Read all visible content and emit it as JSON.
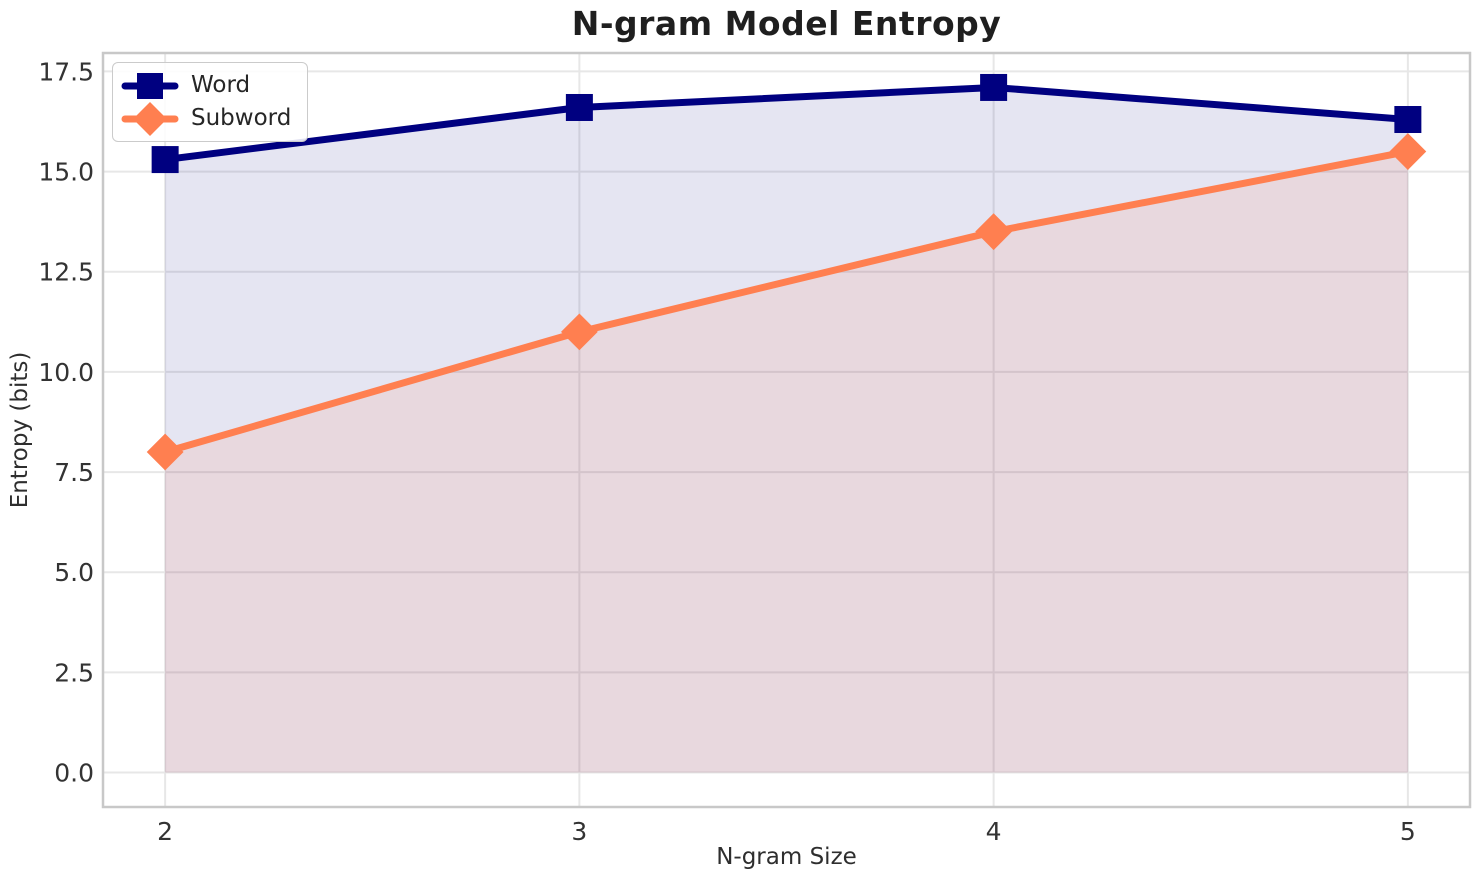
{
  "figure": {
    "background": "#ffffff"
  },
  "chart_data": {
    "type": "line",
    "title": "N-gram Model Entropy",
    "xlabel": "N-gram Size",
    "ylabel": "Entropy (bits)",
    "x": [
      2,
      3,
      4,
      5
    ],
    "series": [
      {
        "name": "Word",
        "values": [
          15.3,
          16.6,
          17.1,
          16.3
        ],
        "color": "#000080",
        "marker": "square",
        "fill_to_zero": true,
        "fill_alpha": 0.1
      },
      {
        "name": "Subword",
        "values": [
          8.0,
          11.0,
          13.5,
          15.5
        ],
        "color": "#FF7F50",
        "marker": "diamond",
        "fill_to_zero": true,
        "fill_alpha": 0.12
      }
    ],
    "xticks": {
      "values": [
        2,
        3,
        4,
        5
      ],
      "labels": [
        "2",
        "3",
        "4",
        "5"
      ]
    },
    "yticks": {
      "values": [
        0,
        2.5,
        5,
        7.5,
        10,
        12.5,
        15,
        17.5
      ],
      "labels": [
        "0.0",
        "2.5",
        "5.0",
        "7.5",
        "10.0",
        "12.5",
        "15.0",
        "17.5"
      ]
    },
    "xlim": [
      1.85,
      5.15
    ],
    "ylim": [
      -0.86,
      17.96
    ],
    "grid": true,
    "legend": {
      "position": "upper-left"
    },
    "style": {
      "grid_color": "#e7e7e7",
      "spine_color": "#c8c8c8",
      "line_width": 7,
      "marker_size": 27,
      "tick_font_size": 25
    }
  }
}
